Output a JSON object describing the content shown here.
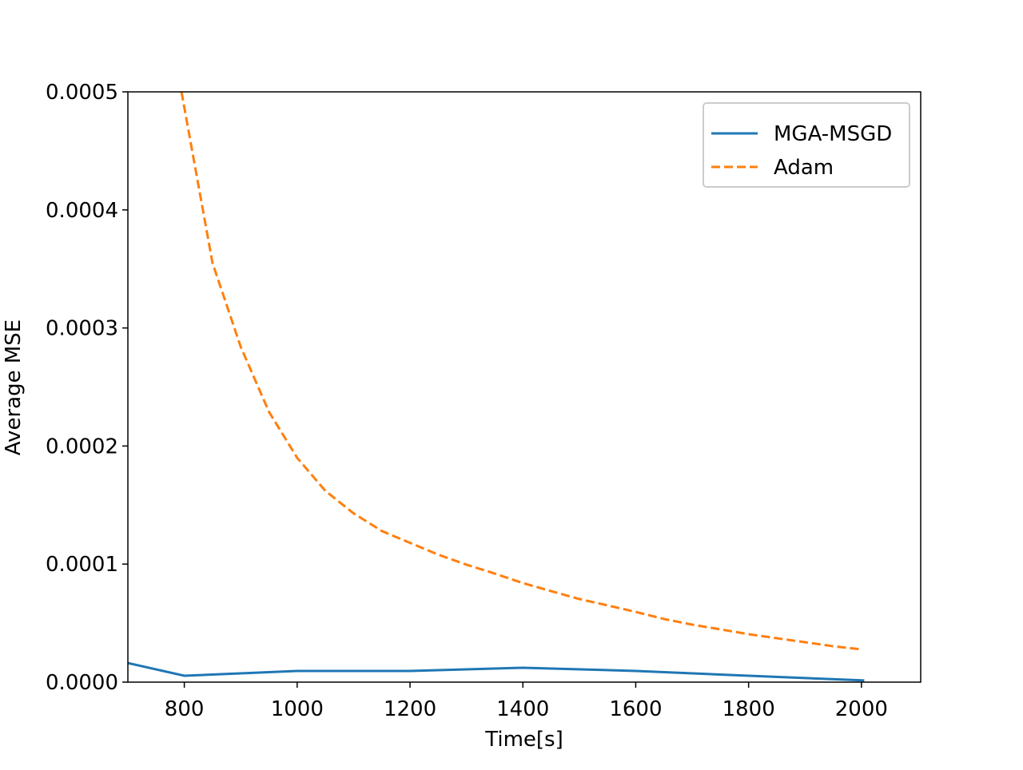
{
  "chart_data": {
    "type": "line",
    "xlabel": "Time[s]",
    "ylabel": "Average MSE",
    "xlim": [
      700,
      2105
    ],
    "ylim": [
      0,
      0.0005
    ],
    "xticks": [
      800,
      1000,
      1200,
      1400,
      1600,
      1800,
      2000
    ],
    "yticks": [
      {
        "value": 0,
        "label": "0.0000"
      },
      0.0001,
      0.0002,
      0.0003,
      0.0004,
      0.0005
    ],
    "legend": "upper right",
    "series": [
      {
        "name": "MGA-MSGD",
        "color": "#1f77b4",
        "dash": "solid",
        "x": [
          700,
          800,
          1000,
          1200,
          1400,
          1600,
          1800,
          2005
        ],
        "values": [
          1.62e-05,
          5.4e-06,
          9.5e-06,
          9.5e-06,
          1.22e-05,
          9.5e-06,
          5.4e-06,
          1.4e-06
        ]
      },
      {
        "name": "Adam",
        "color": "#ff7f0e",
        "dash": "dashed",
        "x": [
          795,
          850,
          900,
          950,
          1000,
          1050,
          1100,
          1150,
          1200,
          1250,
          1300,
          1350,
          1400,
          1450,
          1500,
          1550,
          1600,
          1650,
          1700,
          1750,
          1800,
          1850,
          1900,
          1950,
          2000
        ],
        "values": [
          0.0005,
          0.000355,
          0.000284,
          0.000229,
          0.00019,
          0.000162,
          0.000143,
          0.000128,
          0.000118,
          0.000108,
          9.95e-05,
          9.2e-05,
          8.39e-05,
          7.71e-05,
          7.04e-05,
          6.5e-05,
          5.95e-05,
          5.35e-05,
          4.87e-05,
          4.47e-05,
          4.06e-05,
          3.72e-05,
          3.38e-05,
          3.04e-05,
          2.77e-05
        ]
      }
    ]
  }
}
